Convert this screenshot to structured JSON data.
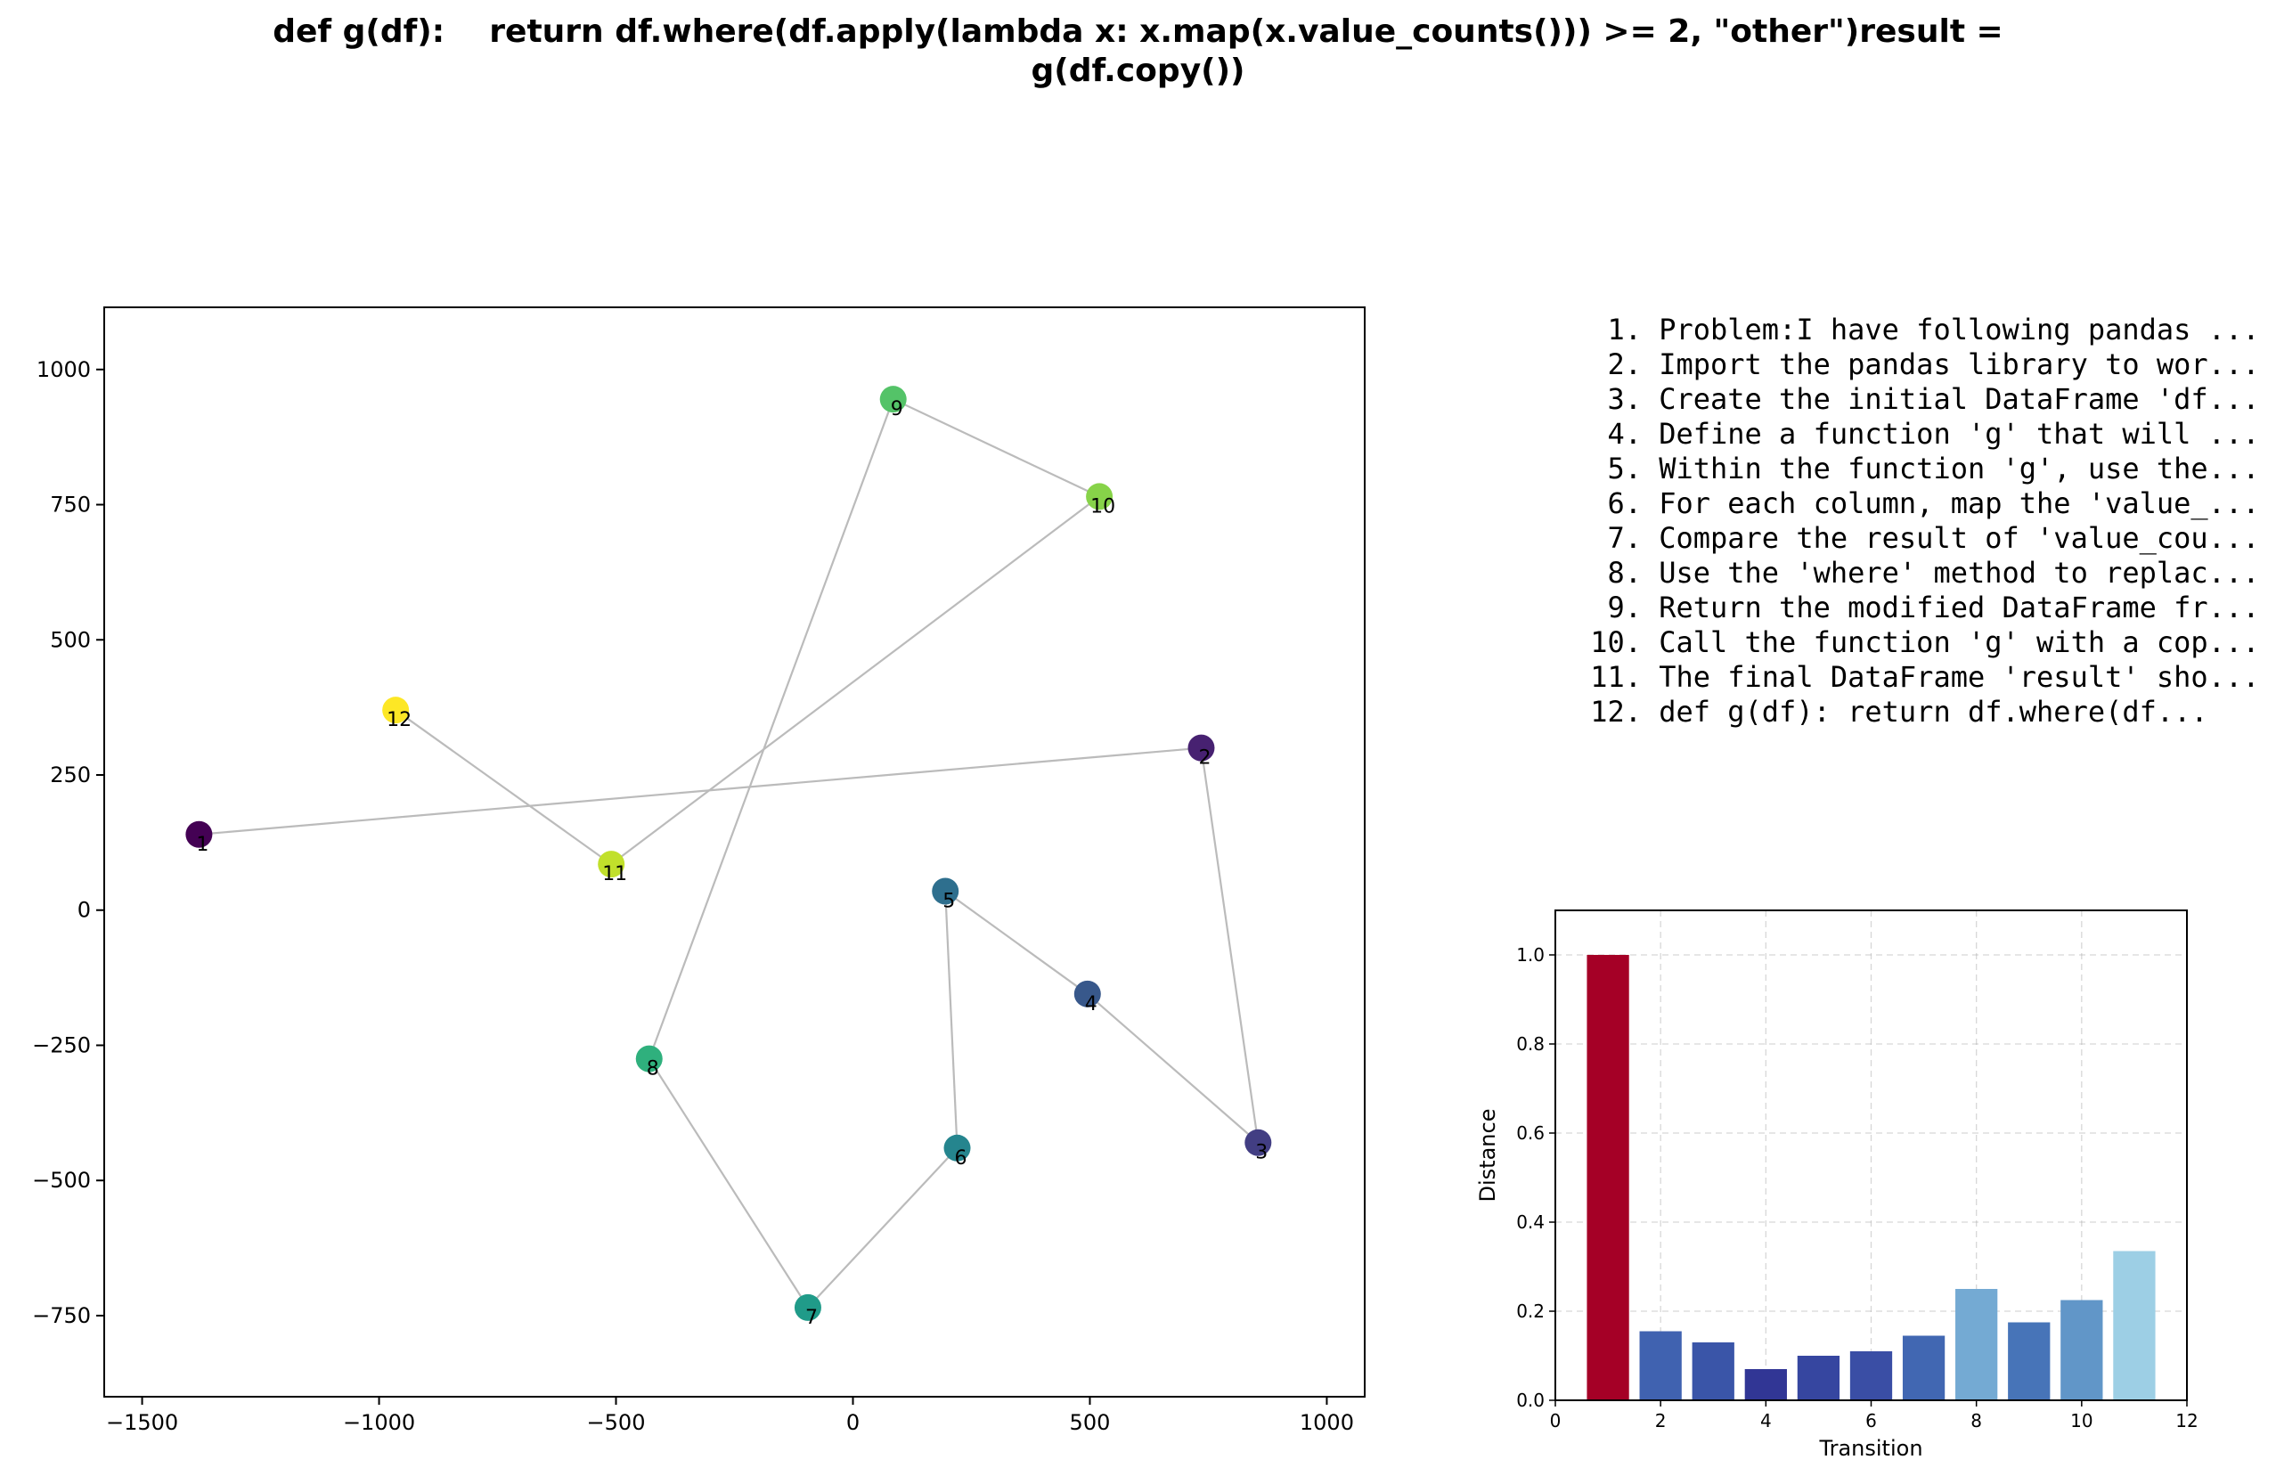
{
  "title_lines": [
    "def g(df):    return df.where(df.apply(lambda x: x.map(x.value_counts())) >= 2, \"other\")result =",
    "g(df.copy())"
  ],
  "steps": [
    "1. Problem:I have following pandas ...",
    "2. Import the pandas library to wor...",
    "3. Create the initial DataFrame 'df...",
    "4. Define a function 'g' that will ...",
    "5. Within the function 'g', use the...",
    "6. For each column, map the 'value_...",
    "7. Compare the result of 'value_cou...",
    "8. Use the 'where' method to replac...",
    "9. Return the modified DataFrame fr...",
    "10. Call the function 'g' with a cop...",
    "11. The final DataFrame 'result' sho...",
    "12. def g(df):    return df.where(df..."
  ],
  "chart_data": [
    {
      "type": "scatter",
      "connected": true,
      "colormap": "viridis",
      "line_color": "#bbbbbb",
      "xlim": [
        -1580,
        1080
      ],
      "ylim": [
        -900,
        1115
      ],
      "xticks": [
        -1500,
        -1000,
        -500,
        0,
        500,
        1000
      ],
      "yticks": [
        -750,
        -500,
        -250,
        0,
        250,
        500,
        750,
        1000
      ],
      "grid": false,
      "points": [
        {
          "label": "1",
          "x": -1380,
          "y": 140
        },
        {
          "label": "2",
          "x": 735,
          "y": 300
        },
        {
          "label": "3",
          "x": 855,
          "y": -430
        },
        {
          "label": "4",
          "x": 495,
          "y": -155
        },
        {
          "label": "5",
          "x": 195,
          "y": 35
        },
        {
          "label": "6",
          "x": 220,
          "y": -440
        },
        {
          "label": "7",
          "x": -95,
          "y": -735
        },
        {
          "label": "8",
          "x": -430,
          "y": -275
        },
        {
          "label": "9",
          "x": 85,
          "y": 945
        },
        {
          "label": "10",
          "x": 520,
          "y": 765
        },
        {
          "label": "11",
          "x": -510,
          "y": 85
        },
        {
          "label": "12",
          "x": -965,
          "y": 370
        }
      ]
    },
    {
      "type": "bar",
      "xlabel": "Transition",
      "ylabel": "Distance",
      "xlim": [
        0,
        12
      ],
      "ylim": [
        0,
        1.1
      ],
      "xticks": [
        0,
        2,
        4,
        6,
        8,
        10,
        12
      ],
      "yticks": [
        0.0,
        0.2,
        0.4,
        0.6,
        0.8,
        1.0
      ],
      "grid": true,
      "categories": [
        1,
        2,
        3,
        4,
        5,
        6,
        7,
        8,
        9,
        10,
        11
      ],
      "values": [
        1.0,
        0.155,
        0.13,
        0.07,
        0.1,
        0.11,
        0.145,
        0.25,
        0.175,
        0.225,
        0.335
      ],
      "colors": [
        "#a50026",
        "#4062b0",
        "#3a55a8",
        "#313695",
        "#3646a0",
        "#3a4ea5",
        "#4167b2",
        "#74aad3",
        "#4774b8",
        "#6196c8",
        "#9dcfe5"
      ]
    }
  ]
}
